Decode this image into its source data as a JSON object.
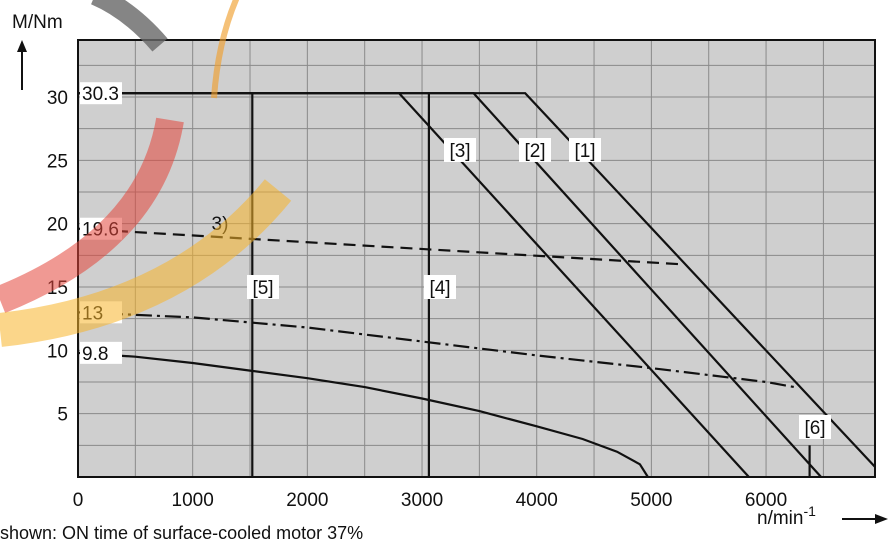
{
  "chart_data": {
    "type": "line",
    "title": "",
    "xlabel": "n/min",
    "xlabel_exp": "-1",
    "ylabel": "M/Nm",
    "xlim": [
      0,
      6950
    ],
    "ylim": [
      0,
      34.5
    ],
    "grid": true,
    "x_ticks": [
      0,
      1000,
      2000,
      3000,
      4000,
      5000,
      6000
    ],
    "y_ticks": [
      5,
      10,
      15,
      20,
      25,
      30
    ],
    "torque_marks": [
      {
        "label": "30.3",
        "value": 30.3
      },
      {
        "label": "19.6",
        "value": 19.6
      },
      {
        "label": "13",
        "value": 13
      },
      {
        "label": "9.8",
        "value": 9.8
      }
    ],
    "series": [
      {
        "label": "[1]",
        "points": [
          [
            0,
            30.3
          ],
          [
            3900,
            30.3
          ],
          [
            6950,
            0.8
          ]
        ]
      },
      {
        "label": "[2]",
        "points": [
          [
            0,
            30.3
          ],
          [
            3450,
            30.3
          ],
          [
            6480,
            0
          ]
        ]
      },
      {
        "label": "[3]",
        "points": [
          [
            0,
            30.3
          ],
          [
            2800,
            30.3
          ],
          [
            5850,
            0
          ]
        ]
      },
      {
        "label": "[4]",
        "points": [
          [
            3060,
            30.3
          ],
          [
            3060,
            0
          ]
        ]
      },
      {
        "label": "[5]",
        "points": [
          [
            1520,
            30.3
          ],
          [
            1520,
            0
          ]
        ]
      },
      {
        "label": "[6]",
        "points": [
          [
            6380,
            2.5
          ],
          [
            6380,
            0
          ]
        ]
      },
      {
        "label": "3)",
        "style": "dashed",
        "points": [
          [
            0,
            19.6
          ],
          [
            5250,
            16.8
          ]
        ]
      },
      {
        "label": "",
        "style": "dashdot",
        "points": [
          [
            0,
            13.0
          ],
          [
            1000,
            12.6
          ],
          [
            2000,
            11.8
          ],
          [
            3000,
            10.7
          ],
          [
            4000,
            9.6
          ],
          [
            5000,
            8.6
          ],
          [
            6000,
            7.5
          ],
          [
            6250,
            7.1
          ]
        ]
      },
      {
        "label": "",
        "style": "solid",
        "points": [
          [
            0,
            9.8
          ],
          [
            500,
            9.5
          ],
          [
            1000,
            9.0
          ],
          [
            1500,
            8.4
          ],
          [
            2000,
            7.8
          ],
          [
            2500,
            7.1
          ],
          [
            3000,
            6.2
          ],
          [
            3500,
            5.2
          ],
          [
            4000,
            4.0
          ],
          [
            4400,
            3.0
          ],
          [
            4700,
            2.0
          ],
          [
            4900,
            1.0
          ],
          [
            4970,
            0
          ]
        ]
      }
    ],
    "footnote": "shown: ON time of surface-cooled motor 37%"
  }
}
